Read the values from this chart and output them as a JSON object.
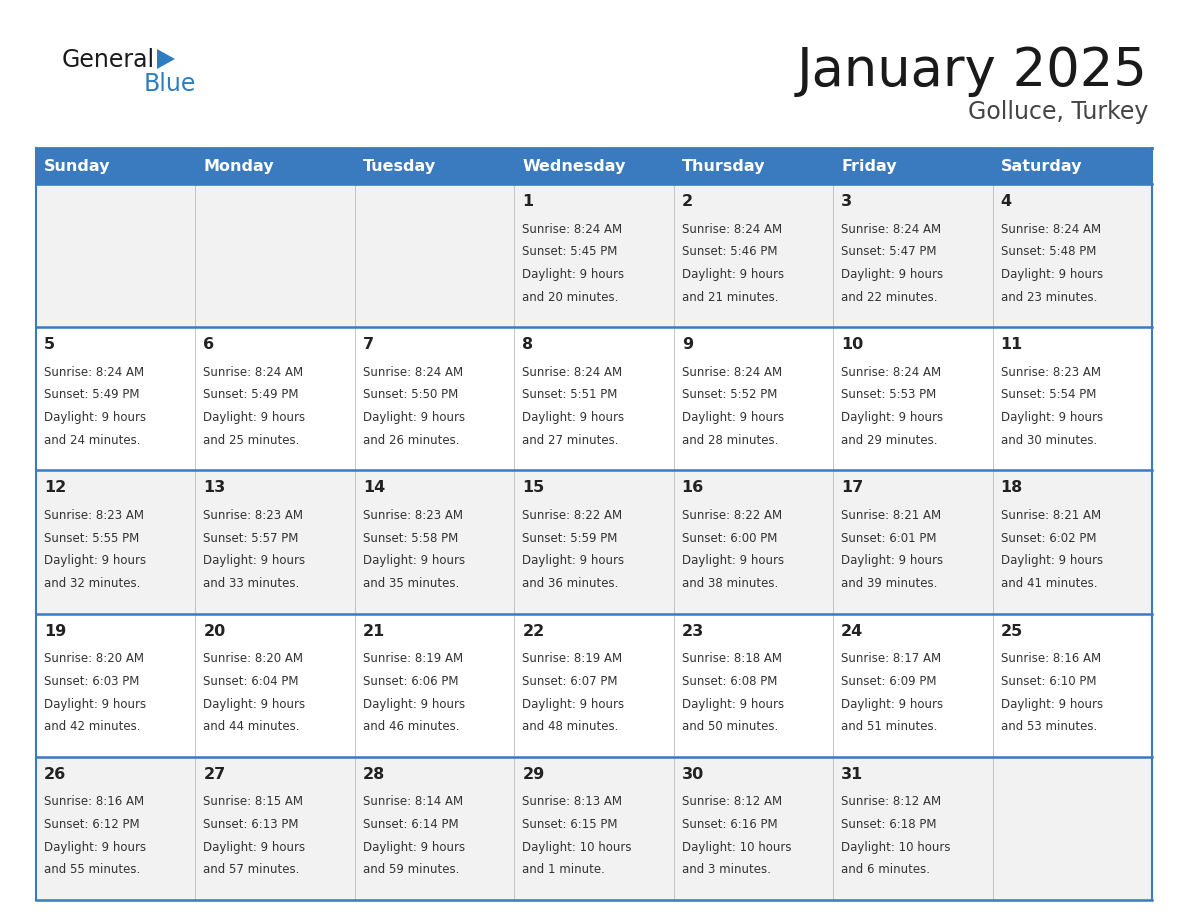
{
  "title": "January 2025",
  "subtitle": "Golluce, Turkey",
  "days_of_week": [
    "Sunday",
    "Monday",
    "Tuesday",
    "Wednesday",
    "Thursday",
    "Friday",
    "Saturday"
  ],
  "header_bg": "#3a7abf",
  "header_text": "#ffffff",
  "row_bg_odd": "#f2f2f2",
  "row_bg_even": "#ffffff",
  "border_color": "#3a7abf",
  "cell_border_color": "#bbbbbb",
  "text_color": "#333333",
  "calendar_data": [
    [
      null,
      null,
      null,
      {
        "day": 1,
        "sunrise": "8:24 AM",
        "sunset": "5:45 PM",
        "daylight": "9 hours",
        "daylight2": "and 20 minutes."
      },
      {
        "day": 2,
        "sunrise": "8:24 AM",
        "sunset": "5:46 PM",
        "daylight": "9 hours",
        "daylight2": "and 21 minutes."
      },
      {
        "day": 3,
        "sunrise": "8:24 AM",
        "sunset": "5:47 PM",
        "daylight": "9 hours",
        "daylight2": "and 22 minutes."
      },
      {
        "day": 4,
        "sunrise": "8:24 AM",
        "sunset": "5:48 PM",
        "daylight": "9 hours",
        "daylight2": "and 23 minutes."
      }
    ],
    [
      {
        "day": 5,
        "sunrise": "8:24 AM",
        "sunset": "5:49 PM",
        "daylight": "9 hours",
        "daylight2": "and 24 minutes."
      },
      {
        "day": 6,
        "sunrise": "8:24 AM",
        "sunset": "5:49 PM",
        "daylight": "9 hours",
        "daylight2": "and 25 minutes."
      },
      {
        "day": 7,
        "sunrise": "8:24 AM",
        "sunset": "5:50 PM",
        "daylight": "9 hours",
        "daylight2": "and 26 minutes."
      },
      {
        "day": 8,
        "sunrise": "8:24 AM",
        "sunset": "5:51 PM",
        "daylight": "9 hours",
        "daylight2": "and 27 minutes."
      },
      {
        "day": 9,
        "sunrise": "8:24 AM",
        "sunset": "5:52 PM",
        "daylight": "9 hours",
        "daylight2": "and 28 minutes."
      },
      {
        "day": 10,
        "sunrise": "8:24 AM",
        "sunset": "5:53 PM",
        "daylight": "9 hours",
        "daylight2": "and 29 minutes."
      },
      {
        "day": 11,
        "sunrise": "8:23 AM",
        "sunset": "5:54 PM",
        "daylight": "9 hours",
        "daylight2": "and 30 minutes."
      }
    ],
    [
      {
        "day": 12,
        "sunrise": "8:23 AM",
        "sunset": "5:55 PM",
        "daylight": "9 hours",
        "daylight2": "and 32 minutes."
      },
      {
        "day": 13,
        "sunrise": "8:23 AM",
        "sunset": "5:57 PM",
        "daylight": "9 hours",
        "daylight2": "and 33 minutes."
      },
      {
        "day": 14,
        "sunrise": "8:23 AM",
        "sunset": "5:58 PM",
        "daylight": "9 hours",
        "daylight2": "and 35 minutes."
      },
      {
        "day": 15,
        "sunrise": "8:22 AM",
        "sunset": "5:59 PM",
        "daylight": "9 hours",
        "daylight2": "and 36 minutes."
      },
      {
        "day": 16,
        "sunrise": "8:22 AM",
        "sunset": "6:00 PM",
        "daylight": "9 hours",
        "daylight2": "and 38 minutes."
      },
      {
        "day": 17,
        "sunrise": "8:21 AM",
        "sunset": "6:01 PM",
        "daylight": "9 hours",
        "daylight2": "and 39 minutes."
      },
      {
        "day": 18,
        "sunrise": "8:21 AM",
        "sunset": "6:02 PM",
        "daylight": "9 hours",
        "daylight2": "and 41 minutes."
      }
    ],
    [
      {
        "day": 19,
        "sunrise": "8:20 AM",
        "sunset": "6:03 PM",
        "daylight": "9 hours",
        "daylight2": "and 42 minutes."
      },
      {
        "day": 20,
        "sunrise": "8:20 AM",
        "sunset": "6:04 PM",
        "daylight": "9 hours",
        "daylight2": "and 44 minutes."
      },
      {
        "day": 21,
        "sunrise": "8:19 AM",
        "sunset": "6:06 PM",
        "daylight": "9 hours",
        "daylight2": "and 46 minutes."
      },
      {
        "day": 22,
        "sunrise": "8:19 AM",
        "sunset": "6:07 PM",
        "daylight": "9 hours",
        "daylight2": "and 48 minutes."
      },
      {
        "day": 23,
        "sunrise": "8:18 AM",
        "sunset": "6:08 PM",
        "daylight": "9 hours",
        "daylight2": "and 50 minutes."
      },
      {
        "day": 24,
        "sunrise": "8:17 AM",
        "sunset": "6:09 PM",
        "daylight": "9 hours",
        "daylight2": "and 51 minutes."
      },
      {
        "day": 25,
        "sunrise": "8:16 AM",
        "sunset": "6:10 PM",
        "daylight": "9 hours",
        "daylight2": "and 53 minutes."
      }
    ],
    [
      {
        "day": 26,
        "sunrise": "8:16 AM",
        "sunset": "6:12 PM",
        "daylight": "9 hours",
        "daylight2": "and 55 minutes."
      },
      {
        "day": 27,
        "sunrise": "8:15 AM",
        "sunset": "6:13 PM",
        "daylight": "9 hours",
        "daylight2": "and 57 minutes."
      },
      {
        "day": 28,
        "sunrise": "8:14 AM",
        "sunset": "6:14 PM",
        "daylight": "9 hours",
        "daylight2": "and 59 minutes."
      },
      {
        "day": 29,
        "sunrise": "8:13 AM",
        "sunset": "6:15 PM",
        "daylight": "10 hours",
        "daylight2": "and 1 minute."
      },
      {
        "day": 30,
        "sunrise": "8:12 AM",
        "sunset": "6:16 PM",
        "daylight": "10 hours",
        "daylight2": "and 3 minutes."
      },
      {
        "day": 31,
        "sunrise": "8:12 AM",
        "sunset": "6:18 PM",
        "daylight": "10 hours",
        "daylight2": "and 6 minutes."
      },
      null
    ]
  ]
}
